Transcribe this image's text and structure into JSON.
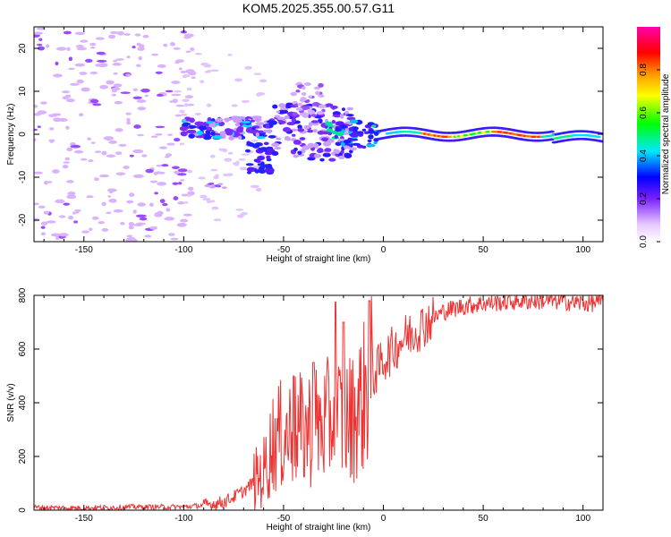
{
  "chart_data": [
    {
      "type": "heatmap",
      "title": "KOM5.2025.355.00.57.G11",
      "xlabel": "Height of straight line (km)",
      "ylabel": "Frequency (Hz)",
      "xlim": [
        -175,
        110
      ],
      "ylim": [
        -25,
        25
      ],
      "xticks": [
        -150,
        -100,
        -50,
        0,
        50,
        100
      ],
      "yticks": [
        -20,
        -10,
        0,
        10,
        20
      ],
      "colorbar": {
        "label": "Normalized spectral amplitude",
        "range": [
          0,
          1
        ],
        "ticks": [
          "0.0",
          "0.2",
          "0.4",
          "0.6",
          "0.8"
        ],
        "tick_values": [
          0,
          0.2,
          0.4,
          0.6,
          0.8
        ],
        "colormap": "rainbow (white-violet-blue-cyan-green-yellow-orange-red-magenta)"
      },
      "features": [
        {
          "name": "noise scatter",
          "x_range": [
            -175,
            -100
          ],
          "freq_range": [
            -25,
            25
          ],
          "amplitude": 0.05
        },
        {
          "name": "band near -80 km",
          "x": -80,
          "freq": 1.5,
          "amplitude": 0.25
        },
        {
          "name": "lobe near -62 km",
          "x": -62,
          "freq": -6,
          "amplitude": 0.2
        },
        {
          "name": "band near -10 km",
          "x": -10,
          "freq": 1,
          "amplitude": 0.3
        },
        {
          "name": "carrier line",
          "x_range": [
            0,
            110
          ],
          "freq": 0,
          "amplitude": 0.9
        }
      ]
    },
    {
      "type": "line",
      "xlabel": "Height of straight line (km)",
      "ylabel": "SNR (v/v)",
      "xlim": [
        -175,
        110
      ],
      "ylim": [
        0,
        800
      ],
      "xticks": [
        -150,
        -100,
        -50,
        0,
        50,
        100
      ],
      "yticks": [
        0,
        200,
        400,
        600,
        800
      ],
      "series": [
        {
          "name": "SNR",
          "color": "#ee3333",
          "x": [
            -175,
            -150,
            -125,
            -100,
            -90,
            -80,
            -70,
            -60,
            -55,
            -50,
            -45,
            -40,
            -35,
            -30,
            -25,
            -20,
            -15,
            -10,
            -5,
            0,
            5,
            10,
            20,
            30,
            40,
            50,
            60,
            70,
            80,
            90,
            100,
            110
          ],
          "y": [
            10,
            8,
            12,
            12,
            18,
            30,
            70,
            140,
            260,
            280,
            300,
            290,
            320,
            310,
            360,
            330,
            350,
            420,
            500,
            560,
            600,
            640,
            690,
            740,
            760,
            770,
            775,
            780,
            780,
            778,
            770,
            775
          ],
          "spikes": [
            {
              "x": -45,
              "y": 500
            },
            {
              "x": -35,
              "y": 550
            },
            {
              "x": -24,
              "y": 775
            },
            {
              "x": -20,
              "y": 700
            },
            {
              "x": -7,
              "y": 780
            }
          ]
        }
      ]
    }
  ]
}
